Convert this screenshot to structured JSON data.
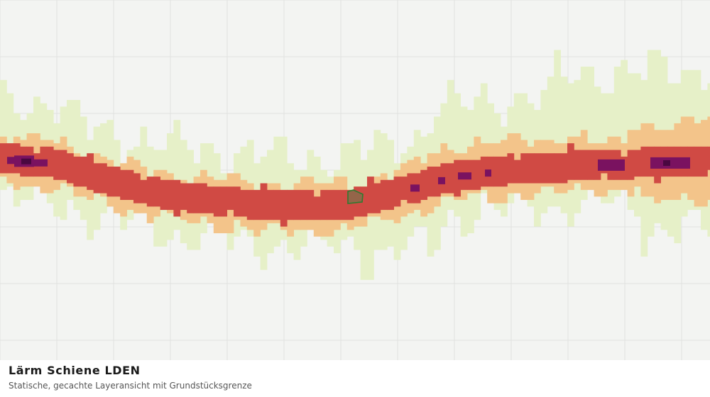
{
  "caption": {
    "title": "Lärm Schiene LDEN",
    "subtitle": "Statische, gecachte Layeransicht mit Grundstücksgrenze"
  },
  "map": {
    "background": "#f3f4f2",
    "grid_color": "#e0e2e0",
    "parcel": {
      "fill": "#8a6a4a",
      "stroke": "#2f7a2f"
    },
    "noise_classes": [
      {
        "name": "class-1",
        "color": "#e6f0c8"
      },
      {
        "name": "class-2",
        "color": "#f3c48a"
      },
      {
        "name": "class-3",
        "color": "#d04a44"
      },
      {
        "name": "class-4",
        "color": "#7a1260"
      },
      {
        "name": "class-5",
        "color": "#4a0840"
      }
    ]
  }
}
